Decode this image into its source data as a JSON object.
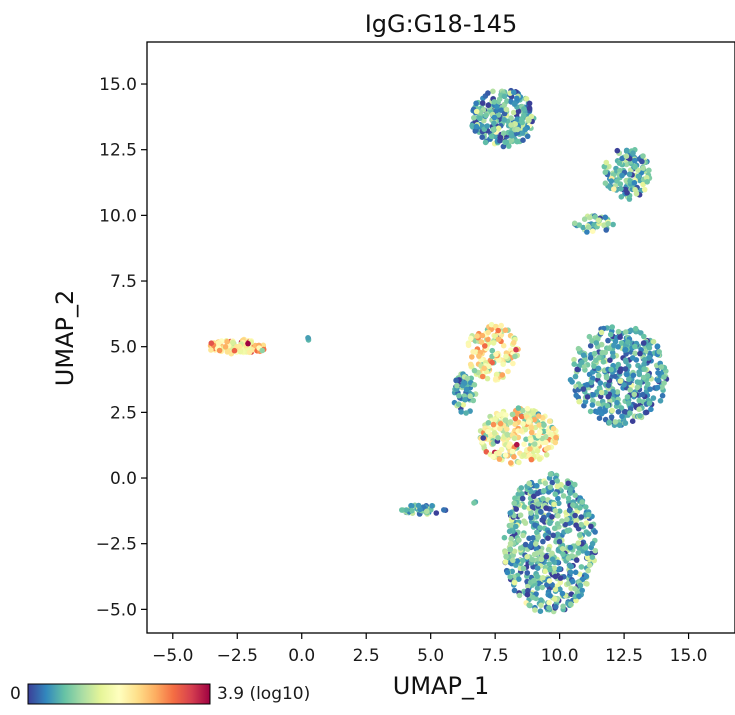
{
  "chart_data": {
    "type": "scatter",
    "title": "IgG:G18-145",
    "xlabel": "UMAP_1",
    "ylabel": "UMAP_2",
    "xlim": [
      -6.0,
      16.8
    ],
    "ylim": [
      -5.9,
      16.6
    ],
    "xticks": [
      -5.0,
      -2.5,
      0.0,
      2.5,
      5.0,
      7.5,
      10.0,
      12.5,
      15.0
    ],
    "xtick_labels": [
      "−5.0",
      "−2.5",
      "0.0",
      "2.5",
      "5.0",
      "7.5",
      "10.0",
      "12.5",
      "15.0"
    ],
    "yticks": [
      -5.0,
      -2.5,
      0.0,
      2.5,
      5.0,
      7.5,
      10.0,
      12.5,
      15.0
    ],
    "ytick_labels": [
      "−5.0",
      "−2.5",
      "0.0",
      "2.5",
      "5.0",
      "7.5",
      "10.0",
      "12.5",
      "15.0"
    ],
    "grid": false,
    "colormap": "Spectral_r",
    "colorbar": {
      "min_label": "0",
      "max_label": "3.9 (log10)",
      "min": 0,
      "max": 3.9,
      "placement": "bottom-left",
      "colors": [
        "#3b3f98",
        "#3288bd",
        "#66c2a5",
        "#abdda4",
        "#e6f598",
        "#ffffbf",
        "#fee08b",
        "#fdae61",
        "#f46d43",
        "#d53e4f",
        "#9e0142"
      ]
    },
    "clusters": [
      {
        "cx": 7.8,
        "cy": 13.7,
        "rx": 1.25,
        "ry": 1.1,
        "n": 260,
        "mean": 0.7,
        "spread": 0.5
      },
      {
        "cx": 12.6,
        "cy": 11.6,
        "rx": 0.9,
        "ry": 1.0,
        "n": 130,
        "mean": 0.8,
        "spread": 0.5
      },
      {
        "cx": 11.3,
        "cy": 9.7,
        "rx": 0.8,
        "ry": 0.35,
        "n": 40,
        "mean": 0.9,
        "spread": 0.5
      },
      {
        "cx": -2.5,
        "cy": 5.0,
        "rx": 1.15,
        "ry": 0.28,
        "n": 90,
        "mean": 2.3,
        "spread": 0.6
      },
      {
        "cx": 7.4,
        "cy": 4.8,
        "rx": 1.0,
        "ry": 1.1,
        "n": 140,
        "mean": 2.0,
        "spread": 0.6
      },
      {
        "cx": 6.3,
        "cy": 3.2,
        "rx": 0.45,
        "ry": 0.8,
        "n": 60,
        "mean": 0.7,
        "spread": 0.4
      },
      {
        "cx": 12.3,
        "cy": 3.9,
        "rx": 1.9,
        "ry": 1.9,
        "n": 420,
        "mean": 0.6,
        "spread": 0.4
      },
      {
        "cx": 8.4,
        "cy": 1.6,
        "rx": 1.5,
        "ry": 1.1,
        "n": 260,
        "mean": 1.8,
        "spread": 0.6
      },
      {
        "cx": 9.6,
        "cy": -2.5,
        "rx": 1.8,
        "ry": 2.7,
        "n": 620,
        "mean": 0.7,
        "spread": 0.5
      },
      {
        "cx": 4.7,
        "cy": -1.2,
        "rx": 0.9,
        "ry": 0.18,
        "n": 45,
        "mean": 0.8,
        "spread": 0.5
      },
      {
        "cx": 0.3,
        "cy": 5.3,
        "rx": 0.1,
        "ry": 0.08,
        "n": 3,
        "mean": 0.6,
        "spread": 0.3
      },
      {
        "cx": 6.7,
        "cy": -0.9,
        "rx": 0.08,
        "ry": 0.08,
        "n": 2,
        "mean": 0.6,
        "spread": 0.3
      }
    ]
  }
}
